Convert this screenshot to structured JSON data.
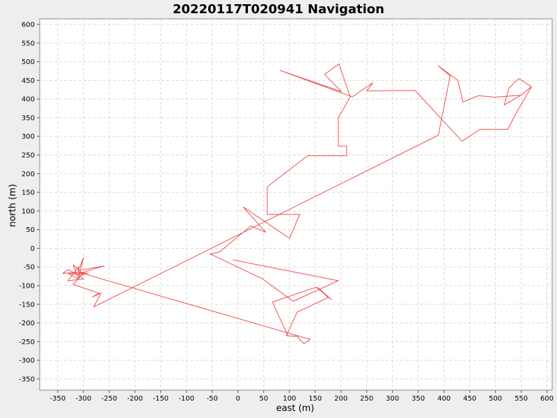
{
  "chart_data": {
    "type": "line",
    "title": "20220117T020941 Navigation",
    "xlabel": "east (m)",
    "ylabel": "north (m)",
    "xlim": [
      -385,
      610
    ],
    "ylim": [
      -380,
      615
    ],
    "grid": true,
    "colors": {
      "line": "#f05050",
      "grid": "#d8d8d8",
      "plot_bg": "#ffffff",
      "page_bg": "#eeeeee"
    },
    "x_ticks": [
      -350,
      -300,
      -250,
      -200,
      -150,
      -100,
      -50,
      0,
      50,
      100,
      150,
      200,
      250,
      300,
      350,
      400,
      450,
      500,
      550,
      600
    ],
    "y_ticks": [
      -350,
      -300,
      -250,
      -200,
      -150,
      -100,
      -50,
      0,
      50,
      100,
      150,
      200,
      250,
      300,
      350,
      400,
      450,
      500,
      550,
      600
    ],
    "series": [
      {
        "points": [
          [
            -10,
            -31
          ],
          [
            195,
            -87
          ],
          [
            107,
            -142
          ],
          [
            48,
            -82
          ],
          [
            -54,
            -15
          ],
          [
            -36,
            -10
          ],
          [
            25,
            60
          ],
          [
            54,
            43
          ],
          [
            10,
            111
          ],
          [
            100,
            27
          ],
          [
            120,
            91
          ],
          [
            57,
            91
          ],
          [
            57,
            165
          ],
          [
            135,
            248
          ],
          [
            211,
            248
          ],
          [
            211,
            274
          ],
          [
            195,
            274
          ],
          [
            195,
            350
          ],
          [
            218,
            406
          ],
          [
            196,
            494
          ],
          [
            168,
            466
          ],
          [
            201,
            420
          ],
          [
            81,
            477
          ],
          [
            222,
            406
          ],
          [
            262,
            444
          ],
          [
            250,
            422
          ],
          [
            344,
            423
          ],
          [
            435,
            287
          ],
          [
            470,
            319
          ],
          [
            524,
            319
          ],
          [
            540,
            362
          ],
          [
            570,
            433
          ],
          [
            549,
            410
          ],
          [
            517,
            384
          ],
          [
            526,
            429
          ],
          [
            545,
            455
          ],
          [
            570,
            433
          ],
          [
            549,
            410
          ],
          [
            498,
            405
          ],
          [
            467,
            409
          ],
          [
            437,
            392
          ],
          [
            427,
            450
          ],
          [
            388,
            490
          ],
          [
            412,
            462
          ],
          [
            389,
            303
          ],
          [
            -280,
            -157
          ],
          [
            -266,
            -120
          ],
          [
            -283,
            -131
          ],
          [
            -270,
            -120
          ],
          [
            -320,
            -97
          ],
          [
            -300,
            -64
          ],
          [
            -260,
            -47
          ],
          [
            -310,
            -60
          ],
          [
            -300,
            -25
          ],
          [
            -310,
            -82
          ],
          [
            -330,
            -67
          ],
          [
            -300,
            -71
          ],
          [
            -320,
            -44
          ],
          [
            -310,
            -82
          ],
          [
            -300,
            -64
          ],
          [
            -340,
            -67
          ],
          [
            -330,
            -57
          ],
          [
            -310,
            -71
          ],
          [
            -300,
            -82
          ],
          [
            -330,
            -87
          ],
          [
            -310,
            -50
          ],
          [
            -310,
            -67
          ],
          [
            -290,
            -67
          ],
          [
            -310,
            -64
          ],
          [
            140,
            -244
          ],
          [
            128,
            -256
          ],
          [
            115,
            -236
          ],
          [
            94,
            -234
          ],
          [
            115,
            -171
          ],
          [
            175,
            -132
          ],
          [
            155,
            -105
          ],
          [
            182,
            -138
          ],
          [
            152,
            -104
          ],
          [
            67,
            -144
          ],
          [
            97,
            -234
          ]
        ]
      }
    ]
  }
}
